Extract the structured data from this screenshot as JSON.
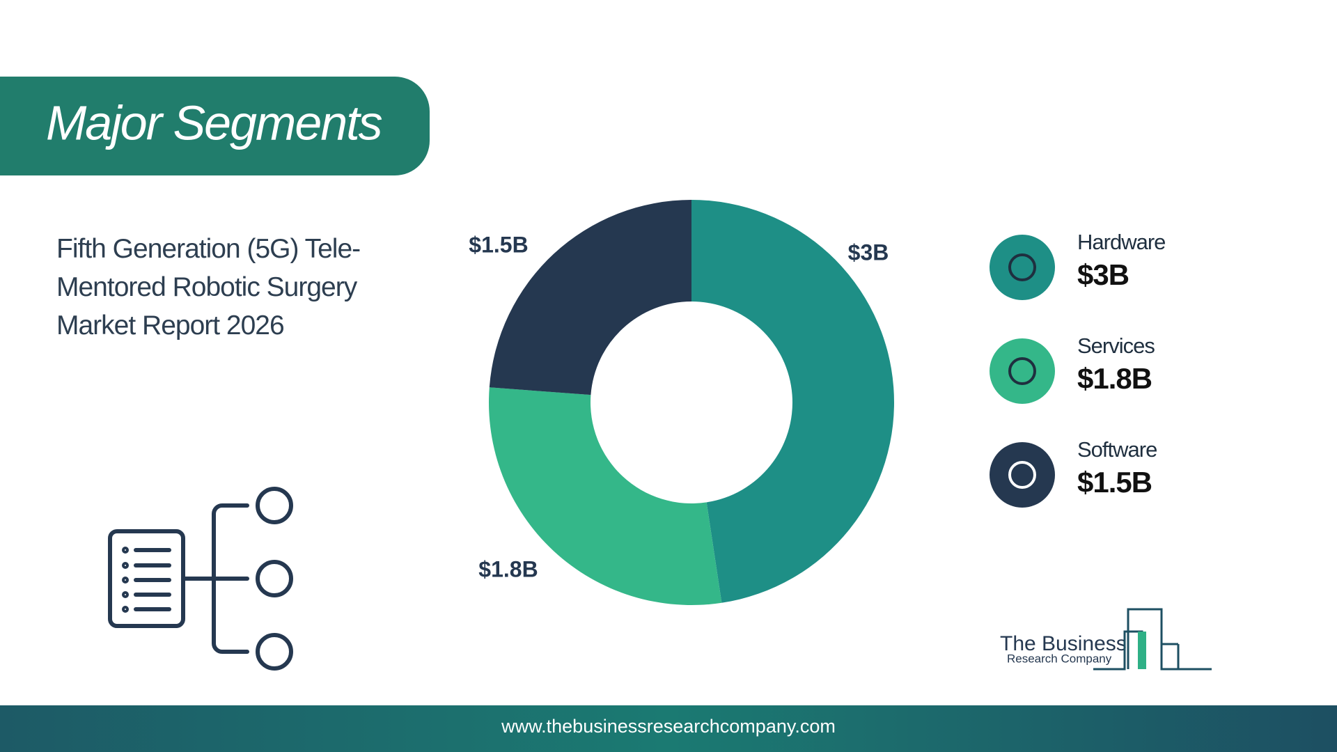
{
  "header": {
    "title": "Major Segments",
    "subtitle": "Fifth Generation (5G) Tele-Mentored Robotic Surgery Market Report 2026"
  },
  "chart_data": {
    "type": "pie",
    "donut": true,
    "categories": [
      "Hardware",
      "Services",
      "Software"
    ],
    "values": [
      3,
      1.8,
      1.5
    ],
    "value_labels": [
      "$3B",
      "$1.8B",
      "$1.5B"
    ],
    "colors": [
      "#1e8f86",
      "#34b789",
      "#253850"
    ]
  },
  "logo": {
    "line1": "The Business",
    "line2": "Research Company"
  },
  "footer": {
    "url": "www.thebusinessresearchcompany.com"
  }
}
